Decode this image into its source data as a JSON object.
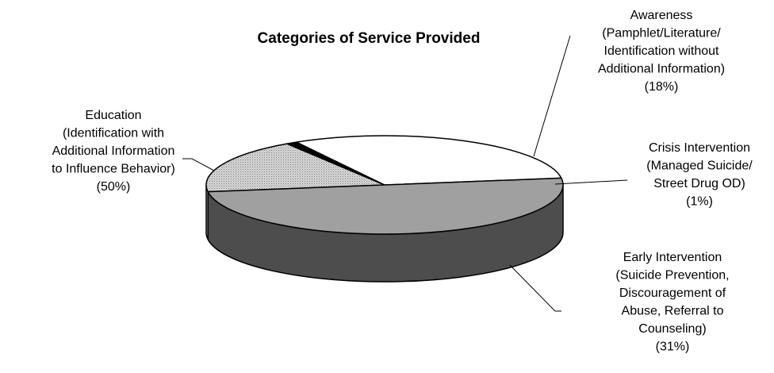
{
  "chart_data": {
    "type": "pie",
    "title": "Categories of Service Provided",
    "slices": [
      {
        "key": "awareness",
        "value": 18,
        "pct_label": "(18%)",
        "label_lines": [
          "Awareness",
          "(Pamphlet/Literature/",
          "Identification without",
          "Additional Information)"
        ],
        "color": "#c8c8c8",
        "pattern": "dotted"
      },
      {
        "key": "crisis",
        "value": 1,
        "pct_label": "(1%)",
        "label_lines": [
          "Crisis Intervention",
          "(Managed Suicide/",
          "Street Drug OD)"
        ],
        "color": "#000000"
      },
      {
        "key": "early",
        "value": 31,
        "pct_label": "(31%)",
        "label_lines": [
          "Early Intervention",
          "(Suicide Prevention,",
          "Discouragement of",
          "Abuse, Referral to",
          "Counseling)"
        ],
        "color": "#ffffff",
        "side_color": "#808080"
      },
      {
        "key": "education",
        "value": 50,
        "pct_label": "(50%)",
        "label_lines": [
          "Education",
          "(Identification with",
          "Additional Information",
          "to Influence Behavior)"
        ],
        "color": "#a0a0a0",
        "side_color": "#4d4d4d"
      }
    ]
  }
}
